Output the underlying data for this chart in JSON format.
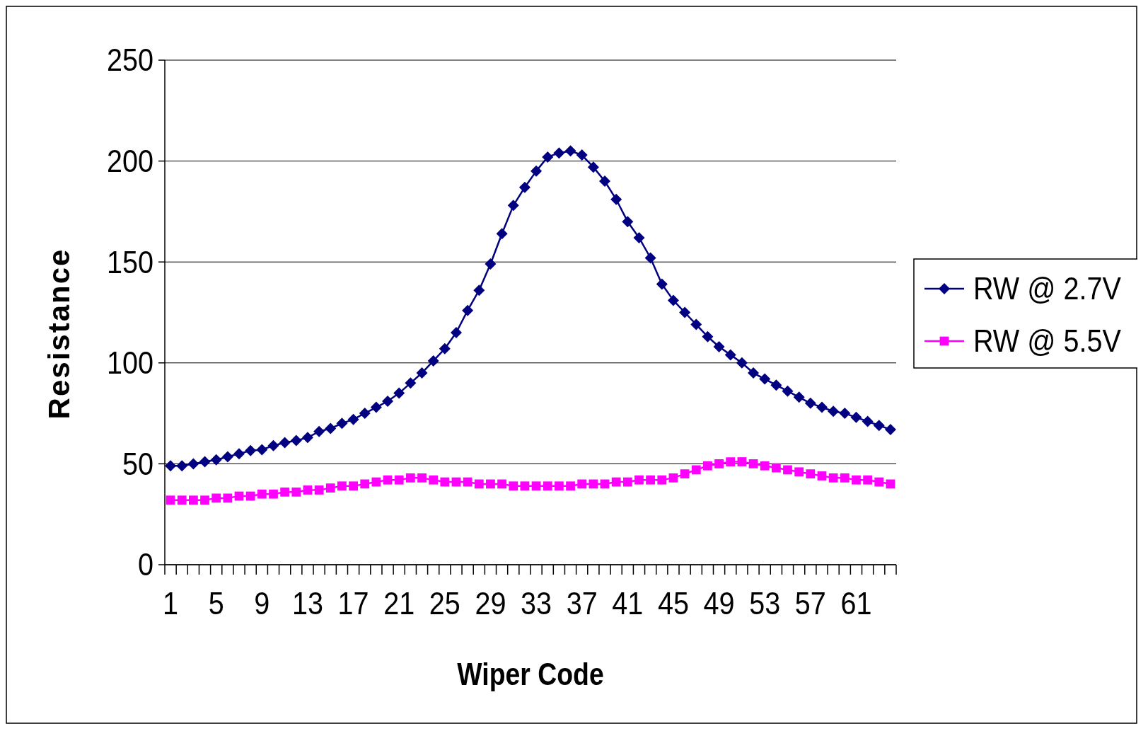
{
  "chart_data": {
    "type": "line",
    "xlabel": "Wiper Code",
    "ylabel": "Resistance",
    "categories": [
      "1",
      null,
      null,
      null,
      "5",
      null,
      null,
      null,
      "9",
      null,
      null,
      null,
      "13",
      null,
      null,
      null,
      "17",
      null,
      null,
      null,
      "21",
      null,
      null,
      null,
      "25",
      null,
      null,
      null,
      "29",
      null,
      null,
      null,
      "33",
      null,
      null,
      null,
      "37",
      null,
      null,
      null,
      "41",
      null,
      null,
      null,
      "45",
      null,
      null,
      null,
      "49",
      null,
      null,
      null,
      "53",
      null,
      null,
      null,
      "57",
      null,
      null,
      null,
      "61",
      null,
      null,
      null
    ],
    "series": [
      {
        "name": "RW @ 2.7V",
        "color": "#000080",
        "marker": "diamond",
        "values": [
          49,
          49,
          50,
          51,
          52,
          53.5,
          55,
          56.5,
          57,
          59,
          60.5,
          61.5,
          63,
          66,
          67.5,
          70,
          72,
          75,
          78,
          81,
          85,
          90,
          95,
          101,
          107,
          115,
          126,
          136,
          149,
          164,
          178,
          187,
          195,
          202,
          204,
          205,
          203,
          197,
          190,
          181,
          170,
          162,
          152,
          139,
          131,
          125,
          119,
          113,
          108,
          104,
          100,
          95,
          92,
          89,
          86,
          83,
          80,
          78,
          76,
          75,
          73,
          71,
          69,
          67
        ]
      },
      {
        "name": "RW @ 5.5V",
        "color": "#ff00ff",
        "marker": "square",
        "values": [
          32,
          32,
          32,
          32,
          33,
          33,
          34,
          34,
          35,
          35,
          36,
          36,
          37,
          37,
          38,
          39,
          39,
          40,
          41,
          42,
          42,
          43,
          43,
          42,
          41,
          41,
          41,
          40,
          40,
          40,
          39,
          39,
          39,
          39,
          39,
          39,
          40,
          40,
          40,
          41,
          41,
          42,
          42,
          42,
          43,
          45,
          47,
          49,
          50,
          51,
          51,
          50,
          49,
          48,
          47,
          46,
          45,
          44,
          43,
          43,
          42,
          42,
          41,
          40
        ]
      }
    ],
    "ylim": [
      0,
      250
    ],
    "yticks": [
      0,
      50,
      100,
      150,
      200,
      250
    ],
    "grid": "y",
    "legend": "right",
    "line_style": "solid"
  }
}
